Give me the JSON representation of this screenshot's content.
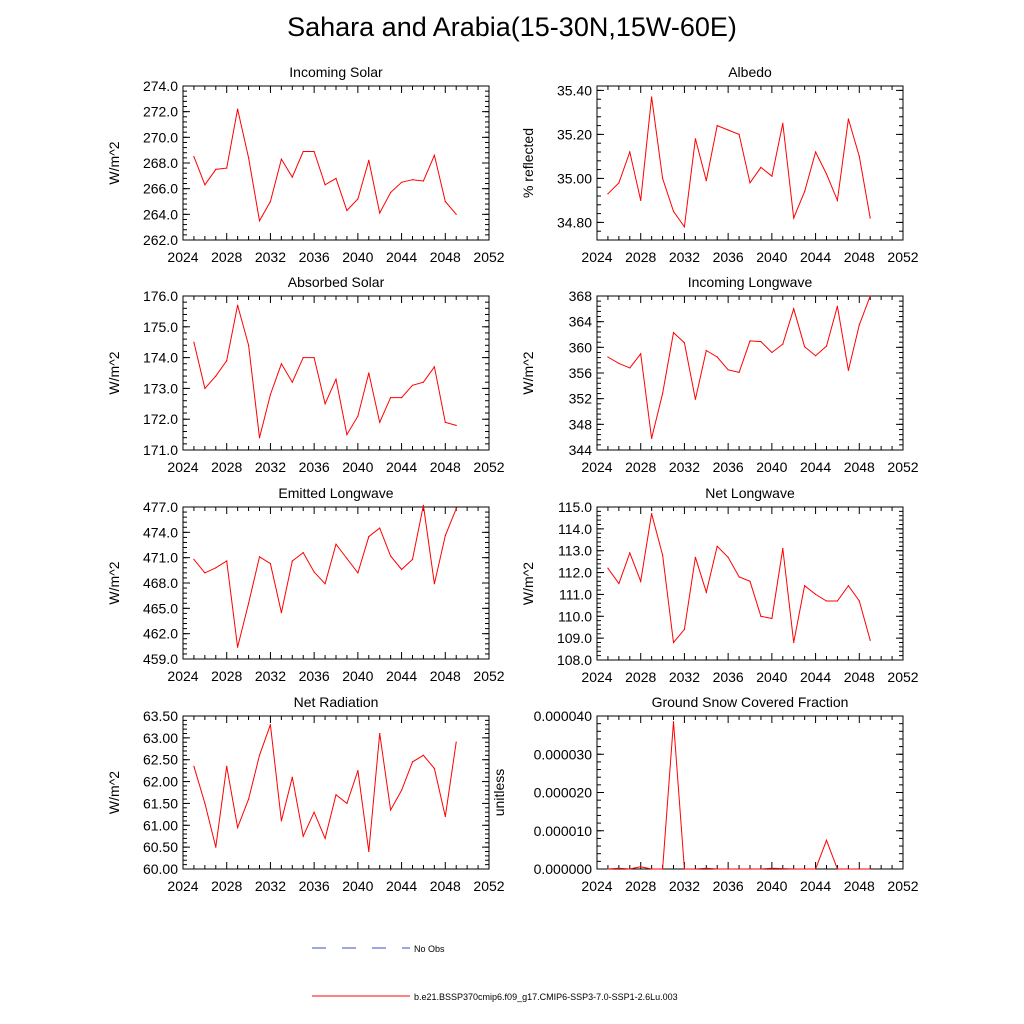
{
  "title": "Sahara and Arabia(15-30N,15W-60E)",
  "legend": {
    "items": [
      {
        "label": "No Obs",
        "color": "#3b4cc0",
        "dash": true
      },
      {
        "label": "b.e21.BSSP370cmip6.f09_g17.CMIP6-SSP3-7.0-SSP1-2.6Lu.003",
        "color": "#ff0000",
        "dash": false
      }
    ]
  },
  "line_color": "#ff0000",
  "chart_data": [
    {
      "type": "line",
      "title": "Incoming Solar",
      "ylabel": "W/m^2",
      "xlim": [
        2024,
        2052
      ],
      "xticks": [
        "2024",
        "2028",
        "2032",
        "2036",
        "2040",
        "2044",
        "2048",
        "2052"
      ],
      "ylim": [
        262.0,
        274.0
      ],
      "yticks": [
        "262.0",
        "264.0",
        "266.0",
        "268.0",
        "270.0",
        "272.0",
        "274.0"
      ],
      "x": [
        2025,
        2026,
        2027,
        2028,
        2029,
        2030,
        2031,
        2032,
        2033,
        2034,
        2035,
        2036,
        2037,
        2038,
        2039,
        2040,
        2041,
        2042,
        2043,
        2044,
        2045,
        2046,
        2047,
        2048,
        2049
      ],
      "series": [
        {
          "values": [
            268.5,
            266.3,
            267.5,
            267.6,
            272.2,
            268.4,
            263.5,
            265.0,
            268.3,
            266.9,
            268.9,
            268.9,
            266.3,
            266.8,
            264.3,
            265.2,
            268.2,
            264.1,
            265.7,
            266.5,
            266.7,
            266.6,
            268.6,
            265.0,
            264.0
          ]
        }
      ]
    },
    {
      "type": "line",
      "title": "Albedo",
      "ylabel": "% reflected",
      "xlim": [
        2024,
        2052
      ],
      "xticks": [
        "2024",
        "2028",
        "2032",
        "2036",
        "2040",
        "2044",
        "2048",
        "2052"
      ],
      "ylim": [
        34.72,
        35.42
      ],
      "yticks": [
        "34.80",
        "35.00",
        "35.20",
        "35.40"
      ],
      "x": [
        2025,
        2026,
        2027,
        2028,
        2029,
        2030,
        2031,
        2032,
        2033,
        2034,
        2035,
        2036,
        2037,
        2038,
        2039,
        2040,
        2041,
        2042,
        2043,
        2044,
        2045,
        2046,
        2047,
        2048,
        2049
      ],
      "series": [
        {
          "values": [
            34.93,
            34.98,
            35.12,
            34.9,
            35.37,
            35.0,
            34.85,
            34.78,
            35.18,
            34.99,
            35.24,
            35.22,
            35.2,
            34.98,
            35.05,
            35.01,
            35.25,
            34.82,
            34.94,
            35.12,
            35.02,
            34.9,
            35.27,
            35.1,
            34.82
          ]
        }
      ]
    },
    {
      "type": "line",
      "title": "Absorbed Solar",
      "ylabel": "W/m^2",
      "xlim": [
        2024,
        2052
      ],
      "xticks": [
        "2024",
        "2028",
        "2032",
        "2036",
        "2040",
        "2044",
        "2048",
        "2052"
      ],
      "ylim": [
        171.0,
        176.0
      ],
      "yticks": [
        "171.0",
        "172.0",
        "173.0",
        "174.0",
        "175.0",
        "176.0"
      ],
      "x": [
        2025,
        2026,
        2027,
        2028,
        2029,
        2030,
        2031,
        2032,
        2033,
        2034,
        2035,
        2036,
        2037,
        2038,
        2039,
        2040,
        2041,
        2042,
        2043,
        2044,
        2045,
        2046,
        2047,
        2048,
        2049
      ],
      "series": [
        {
          "values": [
            174.5,
            173.0,
            173.4,
            173.9,
            175.7,
            174.4,
            171.4,
            172.8,
            173.8,
            173.2,
            174.0,
            174.0,
            172.5,
            173.3,
            171.5,
            172.1,
            173.5,
            171.9,
            172.7,
            172.7,
            173.1,
            173.2,
            173.7,
            171.9,
            171.8
          ]
        }
      ]
    },
    {
      "type": "line",
      "title": "Incoming Longwave",
      "ylabel": "W/m^2",
      "xlim": [
        2024,
        2052
      ],
      "xticks": [
        "2024",
        "2028",
        "2032",
        "2036",
        "2040",
        "2044",
        "2048",
        "2052"
      ],
      "ylim": [
        344,
        368
      ],
      "yticks": [
        "344",
        "348",
        "352",
        "356",
        "360",
        "364",
        "368"
      ],
      "x": [
        2025,
        2026,
        2027,
        2028,
        2029,
        2030,
        2031,
        2032,
        2033,
        2034,
        2035,
        2036,
        2037,
        2038,
        2039,
        2040,
        2041,
        2042,
        2043,
        2044,
        2045,
        2046,
        2047,
        2048,
        2049
      ],
      "series": [
        {
          "values": [
            358.5,
            357.5,
            356.8,
            359.0,
            345.8,
            352.8,
            362.3,
            360.7,
            351.9,
            359.5,
            358.5,
            356.5,
            356.1,
            361.0,
            360.9,
            359.2,
            360.5,
            366.0,
            360.1,
            358.7,
            360.2,
            366.4,
            356.4,
            363.5,
            368.0
          ]
        }
      ]
    },
    {
      "type": "line",
      "title": "Emitted Longwave",
      "ylabel": "W/m^2",
      "xlim": [
        2024,
        2052
      ],
      "xticks": [
        "2024",
        "2028",
        "2032",
        "2036",
        "2040",
        "2044",
        "2048",
        "2052"
      ],
      "ylim": [
        459.0,
        477.0
      ],
      "yticks": [
        "459.0",
        "462.0",
        "465.0",
        "468.0",
        "471.0",
        "474.0",
        "477.0"
      ],
      "x": [
        2025,
        2026,
        2027,
        2028,
        2029,
        2030,
        2031,
        2032,
        2033,
        2034,
        2035,
        2036,
        2037,
        2038,
        2039,
        2040,
        2041,
        2042,
        2043,
        2044,
        2045,
        2046,
        2047,
        2048,
        2049
      ],
      "series": [
        {
          "values": [
            470.8,
            469.2,
            469.8,
            470.6,
            460.4,
            465.6,
            471.1,
            470.3,
            464.5,
            470.6,
            471.6,
            469.3,
            467.9,
            472.6,
            470.9,
            469.2,
            473.5,
            474.5,
            471.2,
            469.6,
            470.8,
            477.2,
            467.9,
            473.6,
            476.8
          ]
        }
      ]
    },
    {
      "type": "line",
      "title": "Net Longwave",
      "ylabel": "W/m^2",
      "xlim": [
        2024,
        2052
      ],
      "xticks": [
        "2024",
        "2028",
        "2032",
        "2036",
        "2040",
        "2044",
        "2048",
        "2052"
      ],
      "ylim": [
        108.0,
        115.0
      ],
      "yticks": [
        "108.0",
        "109.0",
        "110.0",
        "111.0",
        "112.0",
        "113.0",
        "114.0",
        "115.0"
      ],
      "x": [
        2025,
        2026,
        2027,
        2028,
        2029,
        2030,
        2031,
        2032,
        2033,
        2034,
        2035,
        2036,
        2037,
        2038,
        2039,
        2040,
        2041,
        2042,
        2043,
        2044,
        2045,
        2046,
        2047,
        2048,
        2049
      ],
      "series": [
        {
          "values": [
            112.2,
            111.5,
            112.9,
            111.6,
            114.7,
            112.8,
            108.8,
            109.4,
            112.7,
            111.1,
            113.2,
            112.7,
            111.8,
            111.6,
            110.0,
            109.9,
            113.1,
            108.8,
            111.4,
            111.0,
            110.7,
            110.7,
            111.4,
            110.7,
            108.9
          ]
        }
      ]
    },
    {
      "type": "line",
      "title": "Net Radiation",
      "ylabel": "W/m^2",
      "xlim": [
        2024,
        2052
      ],
      "xticks": [
        "2024",
        "2028",
        "2032",
        "2036",
        "2040",
        "2044",
        "2048",
        "2052"
      ],
      "ylim": [
        60.0,
        63.5
      ],
      "yticks": [
        "60.00",
        "60.50",
        "61.00",
        "61.50",
        "62.00",
        "62.50",
        "63.00",
        "63.50"
      ],
      "x": [
        2025,
        2026,
        2027,
        2028,
        2029,
        2030,
        2031,
        2032,
        2033,
        2034,
        2035,
        2036,
        2037,
        2038,
        2039,
        2040,
        2041,
        2042,
        2043,
        2044,
        2045,
        2046,
        2047,
        2048,
        2049
      ],
      "series": [
        {
          "values": [
            62.35,
            61.5,
            60.5,
            62.35,
            60.95,
            61.6,
            62.6,
            63.3,
            61.1,
            62.1,
            60.75,
            61.3,
            60.7,
            61.7,
            61.5,
            62.25,
            60.4,
            63.1,
            61.35,
            61.8,
            62.45,
            62.6,
            62.3,
            61.2,
            62.9
          ]
        }
      ]
    },
    {
      "type": "line",
      "title": "Ground Snow Covered Fraction",
      "ylabel": "unitless",
      "xlim": [
        2024,
        2052
      ],
      "xticks": [
        "2024",
        "2028",
        "2032",
        "2036",
        "2040",
        "2044",
        "2048",
        "2052"
      ],
      "ylim": [
        0.0,
        4e-05
      ],
      "yticks": [
        "0.000000",
        "0.000010",
        "0.000020",
        "0.000030",
        "0.000040"
      ],
      "x": [
        2025,
        2026,
        2027,
        2028,
        2029,
        2030,
        2031,
        2032,
        2033,
        2034,
        2035,
        2036,
        2037,
        2038,
        2039,
        2040,
        2041,
        2042,
        2043,
        2044,
        2045,
        2046,
        2047,
        2048,
        2049
      ],
      "series": [
        {
          "values": [
            0.0,
            2e-07,
            0.0,
            6e-07,
            0.0,
            0.0,
            3.85e-05,
            0.0,
            0.0,
            2e-07,
            0.0,
            0.0,
            0.0,
            0.0,
            0.0,
            2e-07,
            1e-07,
            0.0,
            0.0,
            0.0,
            7.5e-06,
            0.0,
            0.0,
            0.0,
            0.0
          ]
        }
      ]
    }
  ]
}
